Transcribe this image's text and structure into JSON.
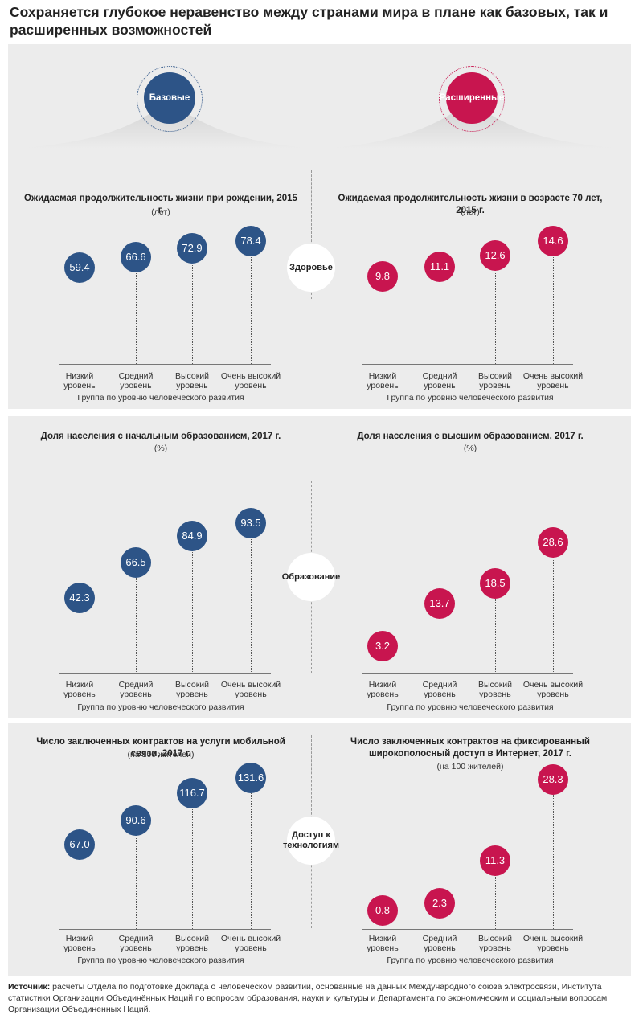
{
  "title": "Сохраняется глубокое неравенство между странами мира в плане как базовых, так и расширенных возможностей",
  "badges": {
    "basic": "Базовые",
    "extended": "Расширенные"
  },
  "colors": {
    "basic": "#2d5487",
    "extended": "#c8154f",
    "panel": "#ececec"
  },
  "categories": [
    "Низкий уровень",
    "Средний уровень",
    "Высокий уровень",
    "Очень высокий уровень"
  ],
  "x_axis_label": "Группа по уровню человеческого развития",
  "sections": [
    {
      "label": "Здоровье"
    },
    {
      "label": "Образование"
    },
    {
      "label": "Доступ к технологиям"
    }
  ],
  "source": {
    "prefix": "Источник:",
    "text": " расчеты Отдела по подготовке Доклада о человеческом развитии, основанные на данных Международного союза электросвязи, Института статистики Организации Объединённых Наций по вопросам образования, науки и культуры и Департамента по экономическим и социальным вопросам Организации Объединенных Наций."
  },
  "chart_data": [
    {
      "type": "lollipop",
      "title": "Ожидаемая продолжительность жизни при рождении, 2015 г.",
      "unit": "(лет)",
      "group": "Базовые",
      "categories": [
        "Низкий уровень",
        "Средний уровень",
        "Высокий уровень",
        "Очень высокий уровень"
      ],
      "values": [
        59.4,
        66.6,
        72.9,
        78.4
      ],
      "xlabel": "Группа по уровню человеческого развития"
    },
    {
      "type": "lollipop",
      "title": "Ожидаемая продолжительность жизни в возрасте 70 лет, 2015 г.",
      "unit": "(лет)",
      "group": "Расширенные",
      "categories": [
        "Низкий уровень",
        "Средний уровень",
        "Высокий уровень",
        "Очень высокий уровень"
      ],
      "values": [
        9.8,
        11.1,
        12.6,
        14.6
      ],
      "xlabel": "Группа по уровню человеческого развития"
    },
    {
      "type": "lollipop",
      "title": "Доля населения с начальным образованием, 2017 г.",
      "unit": "(%)",
      "group": "Базовые",
      "categories": [
        "Низкий уровень",
        "Средний уровень",
        "Высокий уровень",
        "Очень высокий уровень"
      ],
      "values": [
        42.3,
        66.5,
        84.9,
        93.5
      ],
      "xlabel": "Группа по уровню человеческого развития"
    },
    {
      "type": "lollipop",
      "title": "Доля населения с высшим образованием, 2017 г.",
      "unit": "(%)",
      "group": "Расширенные",
      "categories": [
        "Низкий уровень",
        "Средний уровень",
        "Высокий уровень",
        "Очень высокий уровень"
      ],
      "values": [
        3.2,
        13.7,
        18.5,
        28.6
      ],
      "xlabel": "Группа по уровню человеческого развития"
    },
    {
      "type": "lollipop",
      "title": "Число заключенных контрактов на услуги мобильной связи, 2017 г.",
      "unit": "(на 100 жителей)",
      "group": "Базовые",
      "categories": [
        "Низкий уровень",
        "Средний уровень",
        "Высокий уровень",
        "Очень высокий уровень"
      ],
      "values": [
        67.0,
        90.6,
        116.7,
        131.6
      ],
      "xlabel": "Группа по уровню человеческого развития"
    },
    {
      "type": "lollipop",
      "title": "Число заключенных контрактов на фиксированный широкополосный доступ в Интернет, 2017 г.",
      "unit": "(на 100 жителей)",
      "group": "Расширенные",
      "categories": [
        "Низкий уровень",
        "Средний уровень",
        "Высокий уровень",
        "Очень высокий уровень"
      ],
      "values": [
        0.8,
        2.3,
        11.3,
        28.3
      ],
      "xlabel": "Группа по уровню человеческого развития"
    }
  ]
}
